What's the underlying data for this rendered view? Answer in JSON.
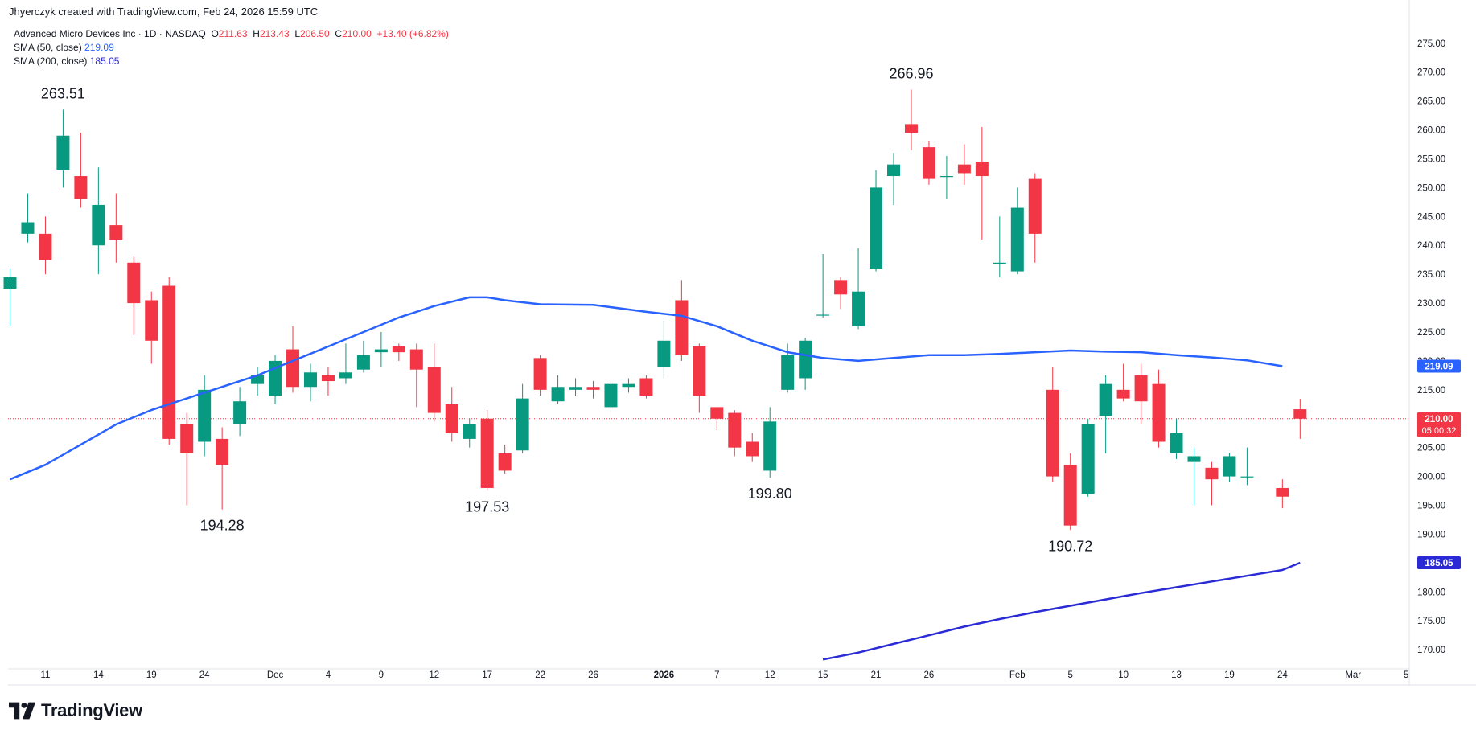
{
  "header": {
    "credit": "Jhyerczyk created with TradingView.com, Feb 24, 2026 15:59 UTC"
  },
  "legend": {
    "symbol": "Advanced Micro Devices Inc · 1D · NASDAQ",
    "o_label": "O",
    "o_value": "211.63",
    "h_label": "H",
    "h_value": "213.43",
    "l_label": "L",
    "l_value": "206.50",
    "c_label": "C",
    "c_value": "210.00",
    "change": "+13.40 (+6.82%)",
    "sma50_label": "SMA (50, close)",
    "sma50_value": "219.09",
    "sma200_label": "SMA (200, close)",
    "sma200_value": "185.05"
  },
  "brand": {
    "name": "TradingView"
  },
  "colors": {
    "up": "#089981",
    "down": "#f23645",
    "sma50": "#2962ff",
    "sma200": "#2b2bd6",
    "price_line": "#f23645"
  },
  "chart_data": {
    "type": "candlestick",
    "y_ticks": [
      "275.00",
      "270.00",
      "265.00",
      "260.00",
      "255.00",
      "250.00",
      "245.00",
      "240.00",
      "235.00",
      "230.00",
      "225.00",
      "220.00",
      "215.00",
      "210.00",
      "205.00",
      "200.00",
      "195.00",
      "190.00",
      "185.00",
      "180.00",
      "175.00",
      "170.00"
    ],
    "ylim": [
      167.5,
      278
    ],
    "x_ticks": [
      {
        "label": "11",
        "i": 2
      },
      {
        "label": "14",
        "i": 5
      },
      {
        "label": "19",
        "i": 8
      },
      {
        "label": "24",
        "i": 11
      },
      {
        "label": "Dec",
        "i": 15
      },
      {
        "label": "4",
        "i": 18
      },
      {
        "label": "9",
        "i": 21
      },
      {
        "label": "12",
        "i": 24
      },
      {
        "label": "17",
        "i": 27
      },
      {
        "label": "22",
        "i": 30
      },
      {
        "label": "26",
        "i": 33
      },
      {
        "label": "2026",
        "i": 37,
        "bold": true
      },
      {
        "label": "7",
        "i": 40
      },
      {
        "label": "12",
        "i": 43
      },
      {
        "label": "15",
        "i": 46
      },
      {
        "label": "21",
        "i": 49
      },
      {
        "label": "26",
        "i": 52
      },
      {
        "label": "Feb",
        "i": 57
      },
      {
        "label": "5",
        "i": 60
      },
      {
        "label": "10",
        "i": 63
      },
      {
        "label": "13",
        "i": 66
      },
      {
        "label": "19",
        "i": 69
      },
      {
        "label": "24",
        "i": 72
      },
      {
        "label": "Mar",
        "i": 76
      },
      {
        "label": "5",
        "i": 79
      }
    ],
    "candles": [
      {
        "o": 232.5,
        "h": 236,
        "l": 226,
        "c": 234.5
      },
      {
        "o": 242,
        "h": 249,
        "l": 240.5,
        "c": 244
      },
      {
        "o": 242,
        "h": 245,
        "l": 235,
        "c": 237.5
      },
      {
        "o": 253,
        "h": 263.51,
        "l": 250,
        "c": 259
      },
      {
        "o": 252,
        "h": 259.5,
        "l": 246.5,
        "c": 248
      },
      {
        "o": 240,
        "h": 253.5,
        "l": 235,
        "c": 247
      },
      {
        "o": 243.5,
        "h": 249,
        "l": 237,
        "c": 241
      },
      {
        "o": 237,
        "h": 238,
        "l": 224.5,
        "c": 230
      },
      {
        "o": 230.5,
        "h": 232,
        "l": 219.5,
        "c": 223.5
      },
      {
        "o": 233,
        "h": 234.5,
        "l": 205.5,
        "c": 206.5
      },
      {
        "o": 209,
        "h": 211,
        "l": 195,
        "c": 204
      },
      {
        "o": 206,
        "h": 217.5,
        "l": 203.5,
        "c": 215
      },
      {
        "o": 206.5,
        "h": 208.5,
        "l": 194.28,
        "c": 202
      },
      {
        "o": 209,
        "h": 215.5,
        "l": 207,
        "c": 213
      },
      {
        "o": 216,
        "h": 219,
        "l": 214,
        "c": 217.5
      },
      {
        "o": 214,
        "h": 221,
        "l": 212.5,
        "c": 220
      },
      {
        "o": 222,
        "h": 226,
        "l": 214.5,
        "c": 215.5
      },
      {
        "o": 215.5,
        "h": 219.5,
        "l": 213,
        "c": 218
      },
      {
        "o": 217.5,
        "h": 219,
        "l": 214,
        "c": 216.5
      },
      {
        "o": 217,
        "h": 223,
        "l": 216,
        "c": 218
      },
      {
        "o": 218.5,
        "h": 223.5,
        "l": 218,
        "c": 221
      },
      {
        "o": 221.5,
        "h": 225,
        "l": 219,
        "c": 222
      },
      {
        "o": 222.5,
        "h": 223,
        "l": 220,
        "c": 221.5
      },
      {
        "o": 222,
        "h": 223,
        "l": 212,
        "c": 218.5
      },
      {
        "o": 219,
        "h": 223,
        "l": 209.5,
        "c": 211
      },
      {
        "o": 212.5,
        "h": 215.5,
        "l": 206,
        "c": 207.5
      },
      {
        "o": 206.5,
        "h": 210,
        "l": 205,
        "c": 209
      },
      {
        "o": 210,
        "h": 211.5,
        "l": 197.53,
        "c": 198
      },
      {
        "o": 204,
        "h": 205.5,
        "l": 200.5,
        "c": 201
      },
      {
        "o": 204.5,
        "h": 216,
        "l": 204,
        "c": 213.5
      },
      {
        "o": 220.5,
        "h": 221,
        "l": 214,
        "c": 215
      },
      {
        "o": 213,
        "h": 217.5,
        "l": 212.5,
        "c": 215.5
      },
      {
        "o": 215,
        "h": 217,
        "l": 214,
        "c": 215.5
      },
      {
        "o": 215.5,
        "h": 216.5,
        "l": 213.5,
        "c": 215
      },
      {
        "o": 212,
        "h": 216.5,
        "l": 209,
        "c": 216
      },
      {
        "o": 215.5,
        "h": 217,
        "l": 214.5,
        "c": 216
      },
      {
        "o": 217,
        "h": 217.5,
        "l": 213.5,
        "c": 214
      },
      {
        "o": 219,
        "h": 227,
        "l": 217,
        "c": 223.5
      },
      {
        "o": 230.5,
        "h": 234,
        "l": 220,
        "c": 221
      },
      {
        "o": 222.5,
        "h": 223,
        "l": 211,
        "c": 214
      },
      {
        "o": 212,
        "h": 212,
        "l": 208,
        "c": 210
      },
      {
        "o": 211,
        "h": 211.5,
        "l": 203.5,
        "c": 205
      },
      {
        "o": 206,
        "h": 207.5,
        "l": 202.5,
        "c": 203.5
      },
      {
        "o": 201,
        "h": 212,
        "l": 199.8,
        "c": 209.5
      },
      {
        "o": 215,
        "h": 223,
        "l": 214.5,
        "c": 221
      },
      {
        "o": 217,
        "h": 224,
        "l": 215,
        "c": 223.5
      },
      {
        "o": 228,
        "h": 238.5,
        "l": 227.5,
        "c": 228
      },
      {
        "o": 234,
        "h": 234.5,
        "l": 229,
        "c": 231.5
      },
      {
        "o": 226,
        "h": 239.5,
        "l": 225.5,
        "c": 232
      },
      {
        "o": 236,
        "h": 253,
        "l": 235.5,
        "c": 250
      },
      {
        "o": 252,
        "h": 256,
        "l": 247,
        "c": 254
      },
      {
        "o": 261,
        "h": 266.96,
        "l": 256.5,
        "c": 259.5
      },
      {
        "o": 257,
        "h": 258,
        "l": 250.5,
        "c": 251.5
      },
      {
        "o": 252,
        "h": 255.5,
        "l": 248,
        "c": 252
      },
      {
        "o": 254,
        "h": 257.5,
        "l": 250.5,
        "c": 252.5
      },
      {
        "o": 254.5,
        "h": 260.5,
        "l": 241,
        "c": 252
      },
      {
        "o": 237,
        "h": 245,
        "l": 234.5,
        "c": 237
      },
      {
        "o": 235.5,
        "h": 250,
        "l": 235,
        "c": 246.5
      },
      {
        "o": 251.5,
        "h": 252.5,
        "l": 237,
        "c": 242
      },
      {
        "o": 215,
        "h": 219,
        "l": 199,
        "c": 200
      },
      {
        "o": 202,
        "h": 204,
        "l": 190.72,
        "c": 191.5
      },
      {
        "o": 197,
        "h": 210,
        "l": 196.5,
        "c": 209
      },
      {
        "o": 210.5,
        "h": 217.5,
        "l": 204,
        "c": 216
      },
      {
        "o": 215,
        "h": 219.5,
        "l": 213,
        "c": 213.5
      },
      {
        "o": 217.5,
        "h": 219.5,
        "l": 209,
        "c": 213
      },
      {
        "o": 216,
        "h": 218.5,
        "l": 205,
        "c": 206
      },
      {
        "o": 204,
        "h": 210,
        "l": 203,
        "c": 207.5
      },
      {
        "o": 202.5,
        "h": 205,
        "l": 195,
        "c": 203.5
      },
      {
        "o": 201.5,
        "h": 202.5,
        "l": 195,
        "c": 199.5
      },
      {
        "o": 200,
        "h": 204,
        "l": 199,
        "c": 203.5
      },
      {
        "o": 200,
        "h": 205,
        "l": 198.5,
        "c": 200
      },
      {},
      {
        "o": 198,
        "h": 199.5,
        "l": 194.5,
        "c": 196.5
      },
      {
        "o": 211.63,
        "h": 213.43,
        "l": 206.5,
        "c": 210.0
      }
    ],
    "sma50": [
      [
        0,
        199.5
      ],
      [
        2,
        202
      ],
      [
        4,
        205.5
      ],
      [
        6,
        209
      ],
      [
        8,
        211.5
      ],
      [
        10,
        213.5
      ],
      [
        12,
        215.5
      ],
      [
        14,
        217.5
      ],
      [
        16,
        220
      ],
      [
        18,
        222.5
      ],
      [
        20,
        225
      ],
      [
        22,
        227.5
      ],
      [
        24,
        229.5
      ],
      [
        26,
        231
      ],
      [
        27,
        231
      ],
      [
        28,
        230.5
      ],
      [
        30,
        229.8
      ],
      [
        33,
        229.7
      ],
      [
        34,
        229.3
      ],
      [
        36,
        228.5
      ],
      [
        38,
        227.8
      ],
      [
        40,
        226
      ],
      [
        42,
        223.5
      ],
      [
        44,
        221.5
      ],
      [
        46,
        220.5
      ],
      [
        48,
        220
      ],
      [
        50,
        220.5
      ],
      [
        52,
        221
      ],
      [
        54,
        221
      ],
      [
        56,
        221.2
      ],
      [
        58,
        221.5
      ],
      [
        60,
        221.8
      ],
      [
        62,
        221.6
      ],
      [
        64,
        221.5
      ],
      [
        66,
        221
      ],
      [
        68,
        220.6
      ],
      [
        70,
        220.1
      ],
      [
        72,
        219.09
      ]
    ],
    "sma200": [
      [
        46,
        168.3
      ],
      [
        48,
        169.5
      ],
      [
        50,
        171
      ],
      [
        52,
        172.5
      ],
      [
        54,
        174
      ],
      [
        56,
        175.3
      ],
      [
        58,
        176.5
      ],
      [
        60,
        177.6
      ],
      [
        62,
        178.7
      ],
      [
        64,
        179.8
      ],
      [
        66,
        180.8
      ],
      [
        68,
        181.8
      ],
      [
        70,
        182.8
      ],
      [
        72,
        183.8
      ],
      [
        73,
        185.05
      ]
    ],
    "current_price": {
      "value": 210.0,
      "label": "210.00",
      "countdown": "05:00:32"
    },
    "sma50_tag": {
      "value": 219.09,
      "label": "219.09"
    },
    "sma200_tag": {
      "value": 185.05,
      "label": "185.05"
    },
    "annotations": [
      {
        "i": 3,
        "value": 263.51,
        "label": "263.51",
        "pos": "above"
      },
      {
        "i": 12,
        "value": 194.28,
        "label": "194.28",
        "pos": "below"
      },
      {
        "i": 27,
        "value": 197.53,
        "label": "197.53",
        "pos": "below"
      },
      {
        "i": 43,
        "value": 199.8,
        "label": "199.80",
        "pos": "below"
      },
      {
        "i": 51,
        "value": 266.96,
        "label": "266.96",
        "pos": "above"
      },
      {
        "i": 60,
        "value": 190.72,
        "label": "190.72",
        "pos": "below"
      }
    ]
  }
}
